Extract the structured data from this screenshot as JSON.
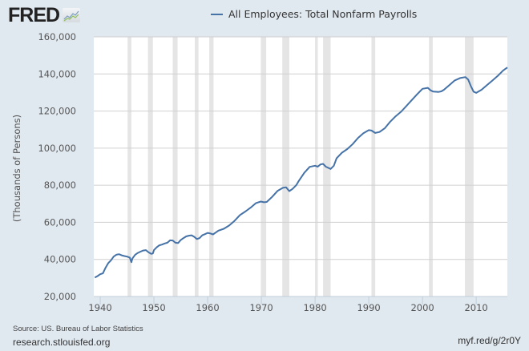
{
  "header": {
    "logo_text": "FRED",
    "legend_label": "All Employees: Total Nonfarm Payrolls",
    "series_color": "#4572a7"
  },
  "footer": {
    "source": "Source: US. Bureau of Labor Statistics",
    "site": "research.stlouisfed.org",
    "short_url": "myf.red/g/2r0Y"
  },
  "chart_data": {
    "type": "line",
    "title": "All Employees: Total Nonfarm Payrolls",
    "xlabel": "",
    "ylabel": "(Thousands of Persons)",
    "xlim": [
      1938.8,
      2015.8
    ],
    "ylim": [
      20000,
      160000
    ],
    "grid": true,
    "legend_position": "top",
    "x_ticks": [
      1940,
      1950,
      1960,
      1970,
      1980,
      1990,
      2000,
      2010
    ],
    "x_tick_labels": [
      "1940",
      "1950",
      "1960",
      "1970",
      "1980",
      "1990",
      "2000",
      "2010"
    ],
    "y_ticks": [
      20000,
      40000,
      60000,
      80000,
      100000,
      120000,
      140000,
      160000
    ],
    "y_tick_labels": [
      "20,000",
      "40,000",
      "60,000",
      "80,000",
      "100,000",
      "120,000",
      "140,000",
      "160,000"
    ],
    "recessions": [
      [
        1945.1,
        1945.8
      ],
      [
        1948.9,
        1949.8
      ],
      [
        1953.5,
        1954.4
      ],
      [
        1957.6,
        1958.3
      ],
      [
        1960.3,
        1961.1
      ],
      [
        1969.9,
        1970.9
      ],
      [
        1973.9,
        1975.2
      ],
      [
        1980.0,
        1980.5
      ],
      [
        1981.5,
        1982.9
      ],
      [
        1990.5,
        1991.2
      ],
      [
        2001.2,
        2001.9
      ],
      [
        2007.9,
        2009.5
      ]
    ],
    "series": [
      {
        "name": "All Employees: Total Nonfarm Payrolls",
        "color": "#4572a7",
        "x": [
          1939.0,
          1939.5,
          1940.0,
          1940.5,
          1941.0,
          1941.5,
          1942.0,
          1942.5,
          1943.0,
          1943.5,
          1944.0,
          1944.5,
          1945.0,
          1945.5,
          1945.8,
          1946.0,
          1946.5,
          1947.0,
          1947.5,
          1948.0,
          1948.5,
          1949.0,
          1949.5,
          1949.8,
          1950.0,
          1950.5,
          1951.0,
          1951.5,
          1952.0,
          1952.5,
          1953.0,
          1953.5,
          1954.0,
          1954.5,
          1955.0,
          1955.5,
          1956.0,
          1956.5,
          1957.0,
          1957.5,
          1958.0,
          1958.5,
          1959.0,
          1959.5,
          1960.0,
          1960.5,
          1961.0,
          1961.5,
          1962.0,
          1963.0,
          1964.0,
          1965.0,
          1966.0,
          1967.0,
          1968.0,
          1969.0,
          1969.9,
          1970.5,
          1971.0,
          1972.0,
          1973.0,
          1974.0,
          1974.6,
          1975.2,
          1975.8,
          1976.5,
          1977.0,
          1978.0,
          1979.0,
          1980.0,
          1980.5,
          1981.0,
          1981.5,
          1982.0,
          1982.9,
          1983.5,
          1984.0,
          1985.0,
          1986.0,
          1987.0,
          1988.0,
          1989.0,
          1990.0,
          1990.5,
          1991.2,
          1992.0,
          1993.0,
          1994.0,
          1995.0,
          1996.0,
          1997.0,
          1998.0,
          1999.0,
          2000.0,
          2001.0,
          2001.5,
          2002.0,
          2003.0,
          2003.5,
          2004.0,
          2005.0,
          2006.0,
          2007.0,
          2008.0,
          2008.5,
          2009.0,
          2009.5,
          2010.0,
          2011.0,
          2012.0,
          2013.0,
          2014.0,
          2015.0,
          2015.8
        ],
        "values": [
          30200,
          31000,
          32000,
          32500,
          35500,
          38000,
          39500,
          41500,
          42500,
          42800,
          42200,
          41800,
          41500,
          41000,
          38500,
          40500,
          42500,
          43500,
          44200,
          44800,
          45000,
          43800,
          43000,
          43200,
          45000,
          46500,
          47600,
          48000,
          48600,
          49000,
          50300,
          50200,
          49000,
          48800,
          50500,
          51500,
          52400,
          52800,
          53000,
          52200,
          51000,
          51500,
          53000,
          53600,
          54300,
          54000,
          53500,
          54500,
          55500,
          56500,
          58300,
          60800,
          63900,
          65800,
          67900,
          70400,
          71200,
          70800,
          71000,
          73700,
          76900,
          78600,
          78900,
          76800,
          78000,
          80000,
          82500,
          86700,
          89900,
          90500,
          90000,
          91200,
          91500,
          90000,
          88800,
          90500,
          94500,
          97500,
          99500,
          102200,
          105500,
          108000,
          109700,
          109500,
          108200,
          108700,
          110800,
          114300,
          117200,
          119600,
          122700,
          125900,
          129000,
          132000,
          132500,
          131200,
          130500,
          130300,
          130600,
          131500,
          134000,
          136500,
          137800,
          138300,
          137000,
          133500,
          130500,
          129800,
          131500,
          134000,
          136400,
          138900,
          141800,
          143500
        ]
      }
    ]
  }
}
